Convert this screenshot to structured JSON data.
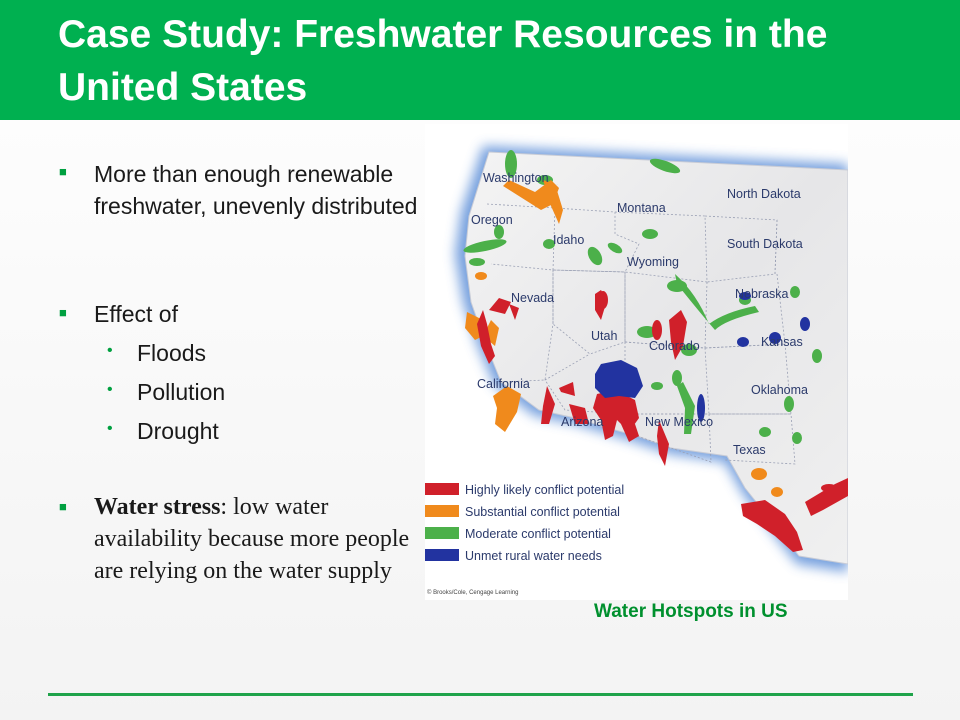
{
  "title": "Case Study: Freshwater Resources in the United States",
  "bullets": [
    {
      "text": "More than enough renewable freshwater, unevenly distributed"
    },
    {
      "text": "Effect of",
      "subitems": [
        "Floods",
        "Pollution",
        "Drought"
      ]
    },
    {
      "bold": "Water stress",
      "rest": ": low water availability because more people are relying on the water supply"
    }
  ],
  "map": {
    "states": [
      "Washington",
      "Oregon",
      "Idaho",
      "Montana",
      "North Dakota",
      "South Dakota",
      "Wyoming",
      "Nebraska",
      "Nevada",
      "Utah",
      "Colorado",
      "Kansas",
      "California",
      "Arizona",
      "New Mexico",
      "Oklahoma",
      "Texas"
    ],
    "legend": [
      {
        "label": "Highly likely conflict potential",
        "color": "#d0202a"
      },
      {
        "label": "Substantial conflict potential",
        "color": "#f08a1c"
      },
      {
        "label": "Moderate conflict potential",
        "color": "#4cb04a"
      },
      {
        "label": "Unmet rural water needs",
        "color": "#2233a0"
      }
    ],
    "credit": "© Brooks/Cole, Cengage Learning"
  },
  "caption": "Water Hotspots in US",
  "colors": {
    "accent": "#00b050",
    "caption": "#00902e"
  }
}
